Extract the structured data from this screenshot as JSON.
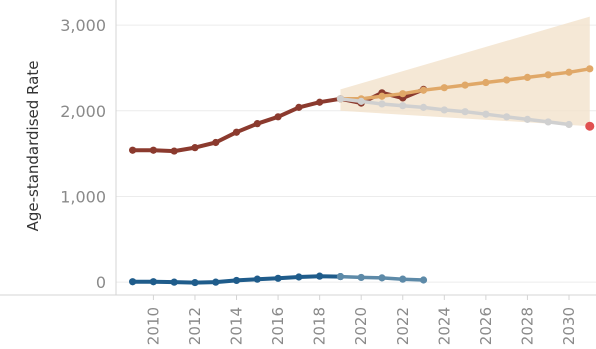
{
  "chart_data": {
    "type": "line",
    "ylabel": "Age-standardised Rate",
    "xlabel": "",
    "title": "",
    "ylim": [
      -150,
      3200
    ],
    "xlim": [
      2008.2,
      2031.3
    ],
    "y_ticks": [
      0,
      1000,
      2000,
      3000
    ],
    "y_tick_labels": [
      "0",
      "1,000",
      "2,000",
      "3,000"
    ],
    "x_ticks": [
      2010,
      2012,
      2014,
      2016,
      2018,
      2020,
      2022,
      2024,
      2026,
      2028,
      2030
    ],
    "x_tick_labels": [
      "2010",
      "2012",
      "2014",
      "2016",
      "2018",
      "2020",
      "2022",
      "2024",
      "2026",
      "2028",
      "2030"
    ],
    "grid": "horizontal",
    "series": [
      {
        "color": "#8b3a2e",
        "style": "solid",
        "x": [
          2009,
          2010,
          2011,
          2012,
          2013,
          2014,
          2015,
          2016,
          2017,
          2018,
          2019,
          2020,
          2021,
          2022,
          2023
        ],
        "values": [
          1540,
          1540,
          1530,
          1570,
          1630,
          1750,
          1850,
          1930,
          2040,
          2100,
          2140,
          2090,
          2210,
          2150,
          2250
        ]
      },
      {
        "color": "#e0a868",
        "style": "projection",
        "x": [
          2019,
          2020,
          2021,
          2022,
          2023,
          2024,
          2025,
          2026,
          2027,
          2028,
          2029,
          2030,
          2031
        ],
        "values": [
          2140,
          2140,
          2170,
          2200,
          2240,
          2270,
          2300,
          2330,
          2360,
          2390,
          2420,
          2450,
          2490
        ]
      },
      {
        "color": "#d0d0d0",
        "style": "projection",
        "x": [
          2019,
          2020,
          2021,
          2022,
          2023,
          2024,
          2025,
          2026,
          2027,
          2028,
          2029,
          2030
        ],
        "values": [
          2140,
          2110,
          2080,
          2060,
          2040,
          2010,
          1990,
          1960,
          1930,
          1900,
          1870,
          1840
        ],
        "end_point": {
          "x": 2031,
          "value": 1820,
          "color": "#e05050"
        }
      },
      {
        "color": "#1f5c8b",
        "style": "solid",
        "x": [
          2009,
          2010,
          2011,
          2012,
          2013,
          2014,
          2015,
          2016,
          2017,
          2018,
          2019
        ],
        "values": [
          5,
          5,
          0,
          -5,
          0,
          20,
          35,
          45,
          60,
          70,
          65
        ]
      },
      {
        "color": "#5d8aa8",
        "style": "projection",
        "x": [
          2019,
          2020,
          2021,
          2022,
          2023
        ],
        "values": [
          65,
          55,
          50,
          35,
          25
        ]
      }
    ],
    "bands": [
      {
        "color": "#f3e2cc",
        "x": [
          2019,
          2031
        ],
        "upper": [
          2250,
          3100
        ],
        "lower": [
          2000,
          1820
        ]
      }
    ]
  }
}
